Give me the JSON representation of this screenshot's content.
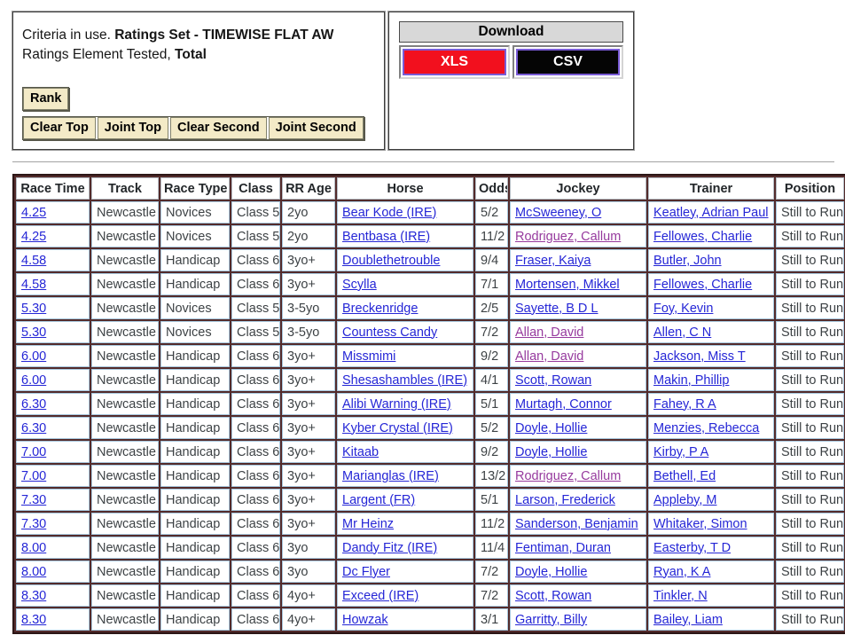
{
  "criteria": {
    "line1_prefix": "Criteria in use. ",
    "line1_bold": "Ratings Set - TIMEWISE FLAT AW",
    "line2_prefix": "Ratings Element Tested, ",
    "line2_bold": "Total",
    "rank_button": "Rank",
    "buttons": [
      "Clear Top",
      "Joint Top",
      "Clear Second",
      "Joint Second"
    ]
  },
  "download": {
    "title": "Download",
    "xls_label": "XLS",
    "csv_label": "CSV"
  },
  "colors": {
    "xls_red": "#f2101e",
    "csv_black": "#050505",
    "download_button_border_purple": "#7a5cd6",
    "table_frame_maroon": "#532b2b",
    "cell_border_light_blue": "#a7c7dd",
    "link_blue": "#2526d6",
    "link_visited_purple": "#963a9e",
    "criteria_button_tan": "#f3eac7"
  },
  "table": {
    "headers": [
      "Race Time",
      "Track",
      "Race Type",
      "Class",
      "RR Age",
      "Horse",
      "Odds",
      "Jockey",
      "Trainer",
      "Position"
    ],
    "rows": [
      {
        "time": "4.25",
        "track": "Newcastle",
        "race_type": "Novices",
        "race_class": "Class 5",
        "rr_age": "2yo",
        "horse": "Bear Kode (IRE)",
        "odds": "5/2",
        "jockey": "McSweeney, O",
        "jockey_visited": false,
        "trainer": "Keatley, Adrian Paul",
        "position": "Still to Run"
      },
      {
        "time": "4.25",
        "track": "Newcastle",
        "race_type": "Novices",
        "race_class": "Class 5",
        "rr_age": "2yo",
        "horse": "Bentbasa (IRE)",
        "odds": "11/2",
        "jockey": "Rodriguez, Callum",
        "jockey_visited": true,
        "trainer": "Fellowes, Charlie",
        "position": "Still to Run"
      },
      {
        "time": "4.58",
        "track": "Newcastle",
        "race_type": "Handicap",
        "race_class": "Class 6",
        "rr_age": "3yo+",
        "horse": "Doublethetrouble",
        "odds": "9/4",
        "jockey": "Fraser, Kaiya",
        "jockey_visited": false,
        "trainer": "Butler, John",
        "position": "Still to Run"
      },
      {
        "time": "4.58",
        "track": "Newcastle",
        "race_type": "Handicap",
        "race_class": "Class 6",
        "rr_age": "3yo+",
        "horse": "Scylla",
        "odds": "7/1",
        "jockey": "Mortensen, Mikkel",
        "jockey_visited": false,
        "trainer": "Fellowes, Charlie",
        "position": "Still to Run"
      },
      {
        "time": "5.30",
        "track": "Newcastle",
        "race_type": "Novices",
        "race_class": "Class 5",
        "rr_age": "3-5yo",
        "horse": "Breckenridge",
        "odds": "2/5",
        "jockey": "Sayette, B D L",
        "jockey_visited": false,
        "trainer": "Foy, Kevin",
        "position": "Still to Run"
      },
      {
        "time": "5.30",
        "track": "Newcastle",
        "race_type": "Novices",
        "race_class": "Class 5",
        "rr_age": "3-5yo",
        "horse": "Countess Candy",
        "odds": "7/2",
        "jockey": "Allan, David",
        "jockey_visited": true,
        "trainer": "Allen, C N",
        "position": "Still to Run"
      },
      {
        "time": "6.00",
        "track": "Newcastle",
        "race_type": "Handicap",
        "race_class": "Class 6",
        "rr_age": "3yo+",
        "horse": "Missmimi",
        "odds": "9/2",
        "jockey": "Allan, David",
        "jockey_visited": true,
        "trainer": "Jackson, Miss T",
        "position": "Still to Run"
      },
      {
        "time": "6.00",
        "track": "Newcastle",
        "race_type": "Handicap",
        "race_class": "Class 6",
        "rr_age": "3yo+",
        "horse": "Shesashambles (IRE)",
        "odds": "4/1",
        "jockey": "Scott, Rowan",
        "jockey_visited": false,
        "trainer": "Makin, Phillip",
        "position": "Still to Run"
      },
      {
        "time": "6.30",
        "track": "Newcastle",
        "race_type": "Handicap",
        "race_class": "Class 6",
        "rr_age": "3yo+",
        "horse": "Alibi Warning (IRE)",
        "odds": "5/1",
        "jockey": "Murtagh, Connor",
        "jockey_visited": false,
        "trainer": "Fahey, R A",
        "position": "Still to Run"
      },
      {
        "time": "6.30",
        "track": "Newcastle",
        "race_type": "Handicap",
        "race_class": "Class 6",
        "rr_age": "3yo+",
        "horse": "Kyber Crystal (IRE)",
        "odds": "5/2",
        "jockey": "Doyle, Hollie",
        "jockey_visited": false,
        "trainer": "Menzies, Rebecca",
        "position": "Still to Run"
      },
      {
        "time": "7.00",
        "track": "Newcastle",
        "race_type": "Handicap",
        "race_class": "Class 6",
        "rr_age": "3yo+",
        "horse": "Kitaab",
        "odds": "9/2",
        "jockey": "Doyle, Hollie",
        "jockey_visited": false,
        "trainer": "Kirby, P A",
        "position": "Still to Run"
      },
      {
        "time": "7.00",
        "track": "Newcastle",
        "race_type": "Handicap",
        "race_class": "Class 6",
        "rr_age": "3yo+",
        "horse": "Marianglas (IRE)",
        "odds": "13/2",
        "jockey": "Rodriguez, Callum",
        "jockey_visited": true,
        "trainer": "Bethell, Ed",
        "position": "Still to Run"
      },
      {
        "time": "7.30",
        "track": "Newcastle",
        "race_type": "Handicap",
        "race_class": "Class 6",
        "rr_age": "3yo+",
        "horse": "Largent (FR)",
        "odds": "5/1",
        "jockey": "Larson, Frederick",
        "jockey_visited": false,
        "trainer": "Appleby, M",
        "position": "Still to Run"
      },
      {
        "time": "7.30",
        "track": "Newcastle",
        "race_type": "Handicap",
        "race_class": "Class 6",
        "rr_age": "3yo+",
        "horse": "Mr Heinz",
        "odds": "11/2",
        "jockey": "Sanderson, Benjamin",
        "jockey_visited": false,
        "trainer": "Whitaker, Simon",
        "position": "Still to Run"
      },
      {
        "time": "8.00",
        "track": "Newcastle",
        "race_type": "Handicap",
        "race_class": "Class 6",
        "rr_age": "3yo",
        "horse": "Dandy Fitz (IRE)",
        "odds": "11/4",
        "jockey": "Fentiman, Duran",
        "jockey_visited": false,
        "trainer": "Easterby, T D",
        "position": "Still to Run"
      },
      {
        "time": "8.00",
        "track": "Newcastle",
        "race_type": "Handicap",
        "race_class": "Class 6",
        "rr_age": "3yo",
        "horse": "Dc Flyer",
        "odds": "7/2",
        "jockey": "Doyle, Hollie",
        "jockey_visited": false,
        "trainer": "Ryan, K A",
        "position": "Still to Run"
      },
      {
        "time": "8.30",
        "track": "Newcastle",
        "race_type": "Handicap",
        "race_class": "Class 6",
        "rr_age": "4yo+",
        "horse": "Exceed (IRE)",
        "odds": "7/2",
        "jockey": "Scott, Rowan",
        "jockey_visited": false,
        "trainer": "Tinkler, N",
        "position": "Still to Run"
      },
      {
        "time": "8.30",
        "track": "Newcastle",
        "race_type": "Handicap",
        "race_class": "Class 6",
        "rr_age": "4yo+",
        "horse": "Howzak",
        "odds": "3/1",
        "jockey": "Garritty, Billy",
        "jockey_visited": false,
        "trainer": "Bailey, Liam",
        "position": "Still to Run"
      }
    ]
  }
}
